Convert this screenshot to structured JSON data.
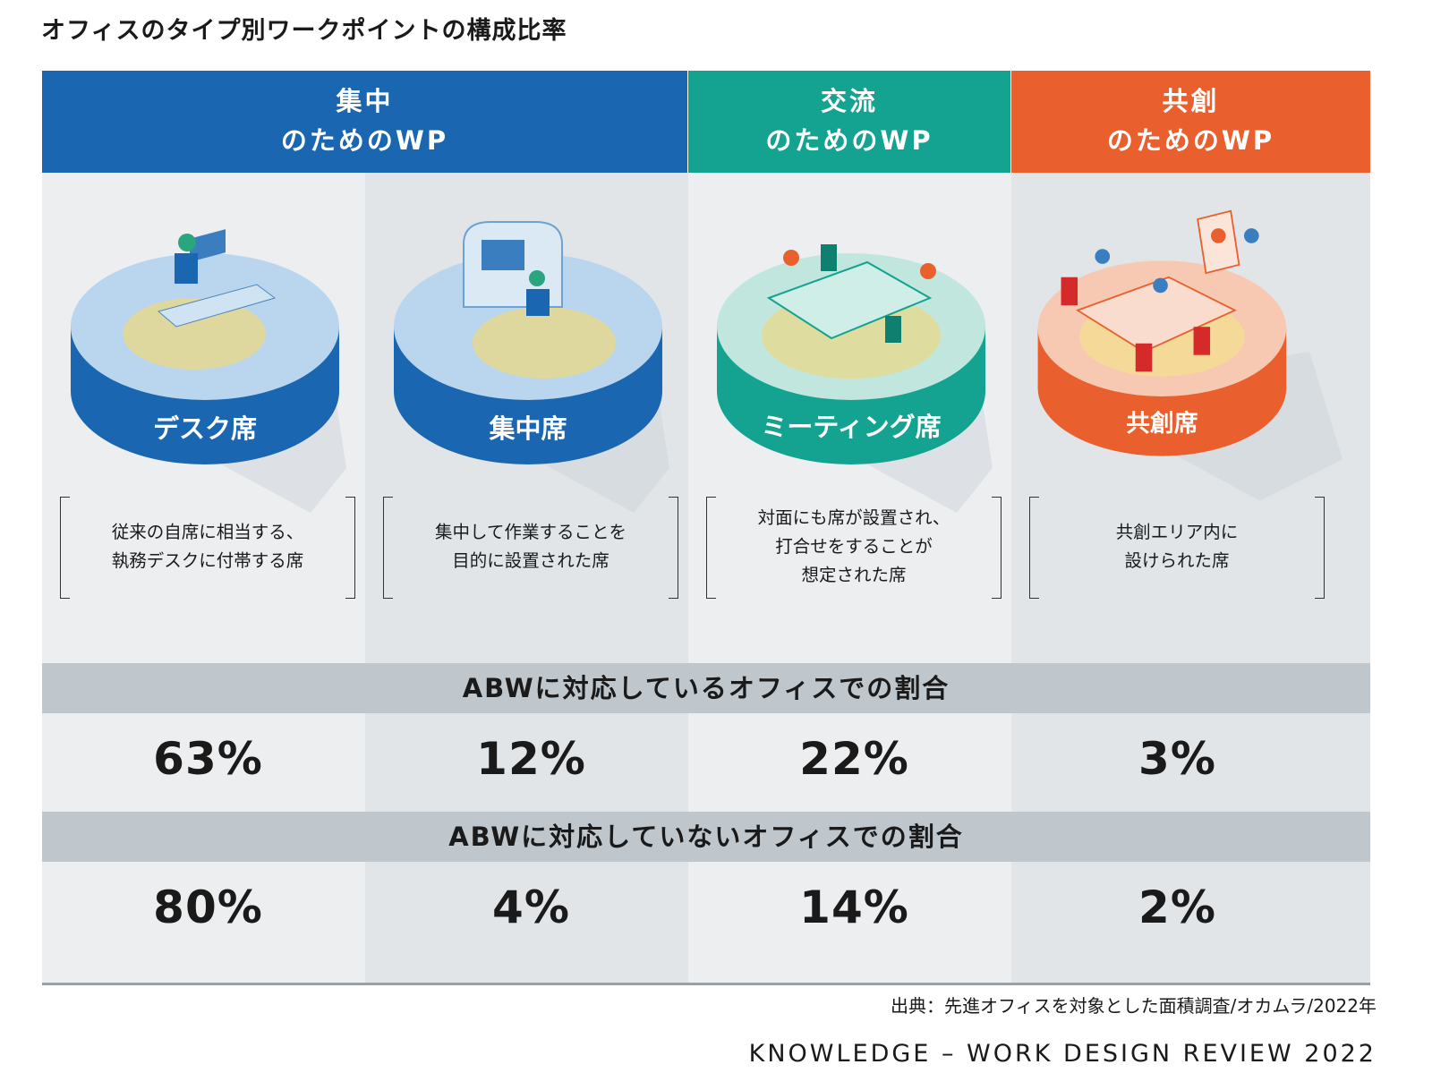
{
  "title": "オフィスのタイプ別ワークポイントの構成比率",
  "headers": [
    {
      "line1": "集中",
      "line2": "のためのWP"
    },
    {
      "line1": "交流",
      "line2": "のためのWP"
    },
    {
      "line1": "共創",
      "line2": "のためのWP"
    }
  ],
  "colors": {
    "blue": "#1a66b0",
    "teal": "#13a390",
    "orange": "#e9602e",
    "band": "#bfc7cd"
  },
  "columns": [
    {
      "label": "デスク席",
      "desc1": "従来の自席に相当する、",
      "desc2": "執務デスクに付帯する席",
      "desc3": ""
    },
    {
      "label": "集中席",
      "desc1": "集中して作業することを",
      "desc2": "目的に設置された席",
      "desc3": ""
    },
    {
      "label": "ミーティング席",
      "desc1": "対面にも席が設置され、",
      "desc2": "打合せをすることが",
      "desc3": "想定された席"
    },
    {
      "label": "共創席",
      "desc1": "共創エリア内に",
      "desc2": "設けられた席",
      "desc3": ""
    }
  ],
  "chart_data": {
    "type": "table",
    "title": "オフィスのタイプ別ワークポイントの構成比率",
    "categories": [
      "デスク席",
      "集中席",
      "ミーティング席",
      "共創席"
    ],
    "series": [
      {
        "name": "ABWに対応しているオフィスでの割合",
        "values": [
          63,
          12,
          22,
          3
        ],
        "labels": [
          "63%",
          "12%",
          "22%",
          "3%"
        ]
      },
      {
        "name": "ABWに対応していないオフィスでの割合",
        "values": [
          80,
          4,
          14,
          2
        ],
        "labels": [
          "80%",
          "4%",
          "14%",
          "2%"
        ]
      }
    ]
  },
  "footer": {
    "source": "出典：先進オフィスを対象とした面積調査/オカムラ/2022年",
    "brand": "KNOWLEDGE – WORK DESIGN REVIEW 2022"
  }
}
